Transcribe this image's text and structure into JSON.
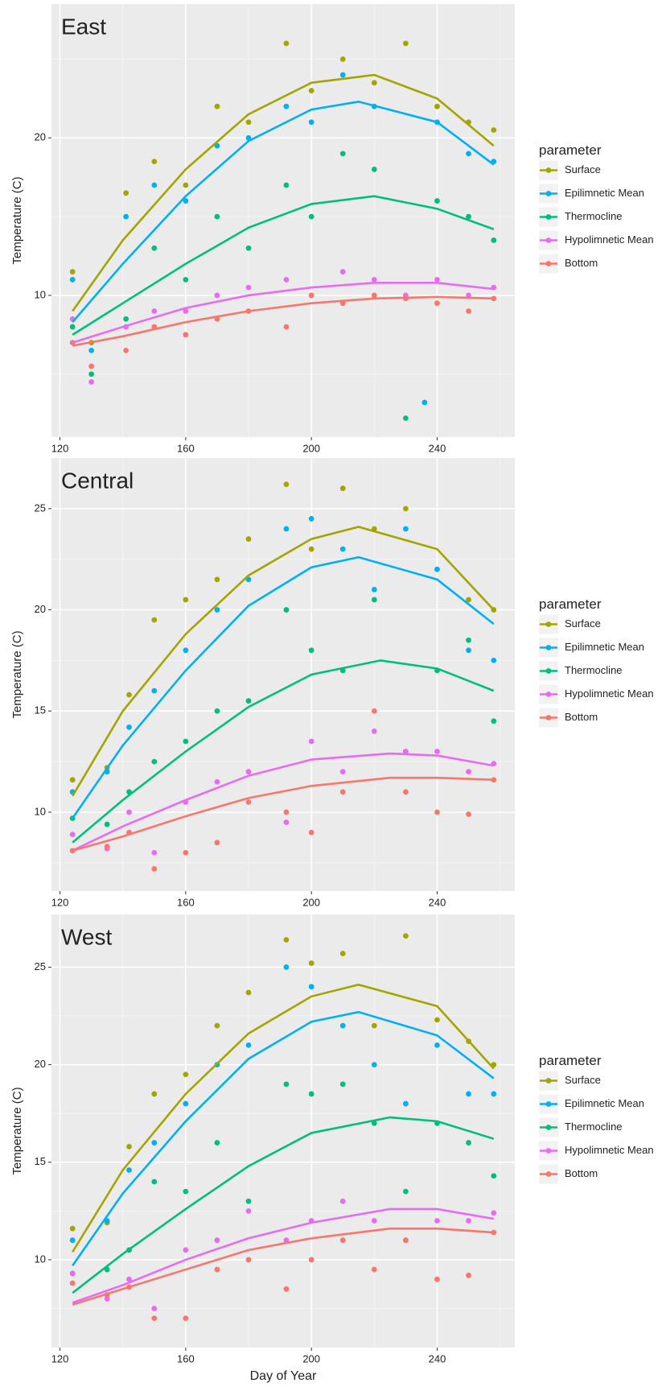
{
  "chart_data": [
    {
      "type": "scatter",
      "title": "East",
      "y_label": "Temperature (C)",
      "legend_title": "parameter",
      "xlim": [
        117.3,
        264.7
      ],
      "xticks": [
        120,
        160,
        200,
        240
      ],
      "minor_xticks": [
        140,
        180,
        220,
        260
      ],
      "ylim": [
        1,
        28.5
      ],
      "yticks": [
        10,
        20
      ],
      "minor_yticks": [
        5,
        15,
        25
      ],
      "grid": true,
      "series": [
        {
          "name": "Surface",
          "color": "#a3a500",
          "x": [
            124,
            130,
            141,
            150,
            160,
            170,
            180,
            192,
            200,
            210,
            220,
            230,
            240,
            250,
            258
          ],
          "values": [
            11.5,
            7,
            16.5,
            18.5,
            17,
            22,
            21,
            26,
            23,
            25,
            23.5,
            26,
            22,
            21,
            20.5
          ]
        },
        {
          "name": "Epilimnetic Mean",
          "color": "#00b0f6",
          "x": [
            124,
            130,
            141,
            150,
            160,
            170,
            180,
            192,
            200,
            210,
            220,
            236,
            240,
            250,
            258
          ],
          "values": [
            11,
            6.5,
            15,
            17,
            16,
            19.5,
            20,
            22,
            21,
            24,
            22,
            3.2,
            21,
            19,
            18.5
          ]
        },
        {
          "name": "Thermocline",
          "color": "#00bf7d",
          "x": [
            124,
            130,
            141,
            150,
            160,
            170,
            180,
            192,
            200,
            210,
            220,
            230,
            240,
            250,
            258
          ],
          "values": [
            8,
            5,
            8.5,
            13,
            11,
            15,
            13,
            17,
            15,
            19,
            18,
            2.2,
            16,
            15,
            13.5
          ]
        },
        {
          "name": "Hypolimnetic Mean",
          "color": "#e76bf3",
          "x": [
            124,
            130,
            141,
            150,
            160,
            170,
            180,
            192,
            200,
            210,
            220,
            230,
            240,
            250,
            258
          ],
          "values": [
            8.5,
            4.5,
            8,
            9,
            9,
            10,
            10.5,
            11,
            10,
            11.5,
            11,
            10,
            11,
            10,
            10.5
          ]
        },
        {
          "name": "Bottom",
          "color": "#f8766d",
          "x": [
            124,
            130,
            141,
            150,
            160,
            170,
            180,
            192,
            200,
            210,
            220,
            230,
            240,
            250,
            258
          ],
          "values": [
            7,
            5.5,
            6.5,
            8,
            7.5,
            8.5,
            9,
            8,
            10,
            9.5,
            10,
            9.8,
            9.5,
            9,
            9.8
          ]
        }
      ],
      "trend_lines": [
        {
          "x": [
            124,
            140,
            160,
            180,
            200,
            220,
            240,
            258
          ],
          "values": [
            9,
            13.5,
            18,
            21.5,
            23.5,
            24,
            22.5,
            19.5
          ]
        },
        {
          "x": [
            124,
            140,
            160,
            180,
            200,
            215,
            240,
            258
          ],
          "values": [
            8.3,
            12,
            16.3,
            19.8,
            21.8,
            22.3,
            21,
            18.3
          ]
        },
        {
          "x": [
            124,
            140,
            160,
            180,
            200,
            220,
            240,
            258
          ],
          "values": [
            7.5,
            9.5,
            12,
            14.3,
            15.8,
            16.3,
            15.5,
            14.2
          ]
        },
        {
          "x": [
            124,
            140,
            160,
            180,
            200,
            220,
            240,
            258
          ],
          "values": [
            7,
            8,
            9.2,
            10,
            10.5,
            10.8,
            10.8,
            10.4
          ]
        },
        {
          "x": [
            124,
            140,
            160,
            180,
            200,
            220,
            240,
            258
          ],
          "values": [
            6.8,
            7.4,
            8.3,
            9,
            9.5,
            9.8,
            9.9,
            9.8
          ]
        }
      ]
    },
    {
      "type": "scatter",
      "title": "Central",
      "y_label": "Temperature (C)",
      "legend_title": "parameter",
      "xlim": [
        117.3,
        264.7
      ],
      "xticks": [
        120,
        160,
        200,
        240
      ],
      "minor_xticks": [
        140,
        180,
        220,
        260
      ],
      "ylim": [
        6.1,
        27.5
      ],
      "yticks": [
        10,
        15,
        20,
        25
      ],
      "minor_yticks": [
        7.5,
        12.5,
        17.5,
        22.5
      ],
      "grid": true,
      "series": [
        {
          "name": "Surface",
          "color": "#a3a500",
          "x": [
            124,
            135,
            142,
            150,
            160,
            170,
            180,
            192,
            200,
            210,
            220,
            230,
            240,
            250,
            258
          ],
          "values": [
            11.6,
            12.2,
            15.8,
            19.5,
            20.5,
            21.5,
            23.5,
            26.2,
            23,
            26,
            24,
            25,
            22,
            20.5,
            20
          ]
        },
        {
          "name": "Epilimnetic Mean",
          "color": "#00b0f6",
          "x": [
            124,
            135,
            142,
            150,
            160,
            170,
            180,
            192,
            200,
            210,
            220,
            230,
            240,
            250,
            258
          ],
          "values": [
            11,
            12,
            14.2,
            16,
            18,
            20,
            21.5,
            24,
            24.5,
            23,
            21,
            24,
            22,
            18,
            17.5
          ]
        },
        {
          "name": "Thermocline",
          "color": "#00bf7d",
          "x": [
            124,
            135,
            142,
            150,
            160,
            170,
            180,
            192,
            200,
            210,
            220,
            230,
            240,
            250,
            258
          ],
          "values": [
            9.7,
            9.4,
            11,
            12.5,
            13.5,
            15,
            15.5,
            20,
            18,
            17,
            20.5,
            13,
            17,
            18.5,
            14.5
          ]
        },
        {
          "name": "Hypolimnetic Mean",
          "color": "#e76bf3",
          "x": [
            124,
            135,
            142,
            150,
            160,
            170,
            180,
            192,
            200,
            210,
            220,
            230,
            240,
            250,
            258
          ],
          "values": [
            8.9,
            8.2,
            10,
            8,
            10.5,
            11.5,
            12,
            9.5,
            13.5,
            12,
            14,
            13,
            13,
            12,
            12.4
          ]
        },
        {
          "name": "Bottom",
          "color": "#f8766d",
          "x": [
            124,
            135,
            142,
            150,
            160,
            170,
            180,
            192,
            200,
            210,
            220,
            230,
            240,
            250,
            258
          ],
          "values": [
            8.1,
            8.3,
            9,
            7.2,
            8,
            8.5,
            10.5,
            10,
            9,
            11,
            15,
            11,
            10,
            9.9,
            11.6
          ]
        }
      ],
      "trend_lines": [
        {
          "x": [
            124,
            140,
            160,
            180,
            200,
            215,
            240,
            258
          ],
          "values": [
            10.8,
            15,
            18.8,
            21.7,
            23.5,
            24.1,
            23,
            20
          ]
        },
        {
          "x": [
            124,
            140,
            160,
            180,
            200,
            215,
            240,
            258
          ],
          "values": [
            9.7,
            13.3,
            17,
            20.2,
            22.1,
            22.6,
            21.5,
            19.3
          ]
        },
        {
          "x": [
            124,
            140,
            160,
            180,
            200,
            222,
            240,
            258
          ],
          "values": [
            8.5,
            10.6,
            13,
            15.2,
            16.8,
            17.5,
            17.1,
            16
          ]
        },
        {
          "x": [
            124,
            140,
            160,
            180,
            200,
            225,
            240,
            258
          ],
          "values": [
            8.1,
            9.3,
            10.6,
            11.8,
            12.6,
            12.9,
            12.8,
            12.3
          ]
        },
        {
          "x": [
            124,
            140,
            160,
            180,
            200,
            225,
            240,
            258
          ],
          "values": [
            8.1,
            8.8,
            9.8,
            10.7,
            11.3,
            11.7,
            11.7,
            11.6
          ]
        }
      ]
    },
    {
      "type": "scatter",
      "title": "West",
      "y_label": "Temperature (C)",
      "x_label": "Day of Year",
      "legend_title": "parameter",
      "xlim": [
        117.3,
        264.7
      ],
      "xticks": [
        120,
        160,
        200,
        240
      ],
      "minor_xticks": [
        140,
        180,
        220,
        260
      ],
      "ylim": [
        5.5,
        27.7
      ],
      "yticks": [
        10,
        15,
        20,
        25
      ],
      "minor_yticks": [
        7.5,
        12.5,
        17.5,
        22.5
      ],
      "grid": true,
      "series": [
        {
          "name": "Surface",
          "color": "#a3a500",
          "x": [
            124,
            135,
            142,
            150,
            160,
            170,
            180,
            192,
            200,
            210,
            220,
            230,
            240,
            250,
            258
          ],
          "values": [
            11.6,
            11.9,
            15.8,
            18.5,
            19.5,
            22,
            23.7,
            26.4,
            25.2,
            25.7,
            22,
            26.6,
            22.3,
            21.2,
            20
          ]
        },
        {
          "name": "Epilimnetic Mean",
          "color": "#00b0f6",
          "x": [
            124,
            135,
            142,
            150,
            160,
            170,
            180,
            192,
            200,
            210,
            220,
            230,
            240,
            250,
            258
          ],
          "values": [
            11,
            12,
            14.6,
            16,
            18,
            20,
            21,
            25,
            24,
            22,
            20,
            18,
            21,
            18.5,
            18.5
          ]
        },
        {
          "name": "Thermocline",
          "color": "#00bf7d",
          "x": [
            124,
            135,
            142,
            150,
            160,
            170,
            180,
            192,
            200,
            210,
            220,
            230,
            240,
            250,
            258
          ],
          "values": [
            9.3,
            9.5,
            10.5,
            14,
            13.5,
            16,
            13,
            19,
            18.5,
            19,
            17,
            13.5,
            17,
            16,
            14.3
          ]
        },
        {
          "name": "Hypolimnetic Mean",
          "color": "#e76bf3",
          "x": [
            124,
            135,
            142,
            150,
            160,
            170,
            180,
            192,
            200,
            210,
            220,
            230,
            240,
            250,
            258
          ],
          "values": [
            9.3,
            8,
            9,
            7.5,
            10.5,
            11,
            12.5,
            11,
            12,
            13,
            12,
            11,
            12,
            12,
            12.4
          ]
        },
        {
          "name": "Bottom",
          "color": "#f8766d",
          "x": [
            124,
            135,
            142,
            150,
            160,
            170,
            180,
            192,
            200,
            210,
            220,
            230,
            240,
            250,
            258
          ],
          "values": [
            8.8,
            8.2,
            8.6,
            7,
            7,
            9.5,
            10,
            8.5,
            10,
            11,
            9.5,
            11,
            9,
            9.2,
            11.4
          ]
        }
      ],
      "trend_lines": [
        {
          "x": [
            124,
            140,
            160,
            180,
            200,
            215,
            240,
            258
          ],
          "values": [
            10.4,
            14.6,
            18.5,
            21.6,
            23.5,
            24.1,
            23,
            19.8
          ]
        },
        {
          "x": [
            124,
            140,
            160,
            180,
            200,
            215,
            240,
            258
          ],
          "values": [
            9.7,
            13.4,
            17.1,
            20.3,
            22.2,
            22.7,
            21.5,
            19.3
          ]
        },
        {
          "x": [
            124,
            140,
            160,
            180,
            200,
            225,
            240,
            258
          ],
          "values": [
            8.3,
            10.3,
            12.6,
            14.8,
            16.5,
            17.3,
            17.1,
            16.2
          ]
        },
        {
          "x": [
            124,
            140,
            160,
            180,
            200,
            225,
            240,
            258
          ],
          "values": [
            7.8,
            8.7,
            10,
            11.1,
            11.9,
            12.6,
            12.6,
            12.1
          ]
        },
        {
          "x": [
            124,
            140,
            160,
            180,
            200,
            225,
            240,
            258
          ],
          "values": [
            7.7,
            8.5,
            9.5,
            10.5,
            11.1,
            11.6,
            11.6,
            11.4
          ]
        }
      ]
    }
  ]
}
